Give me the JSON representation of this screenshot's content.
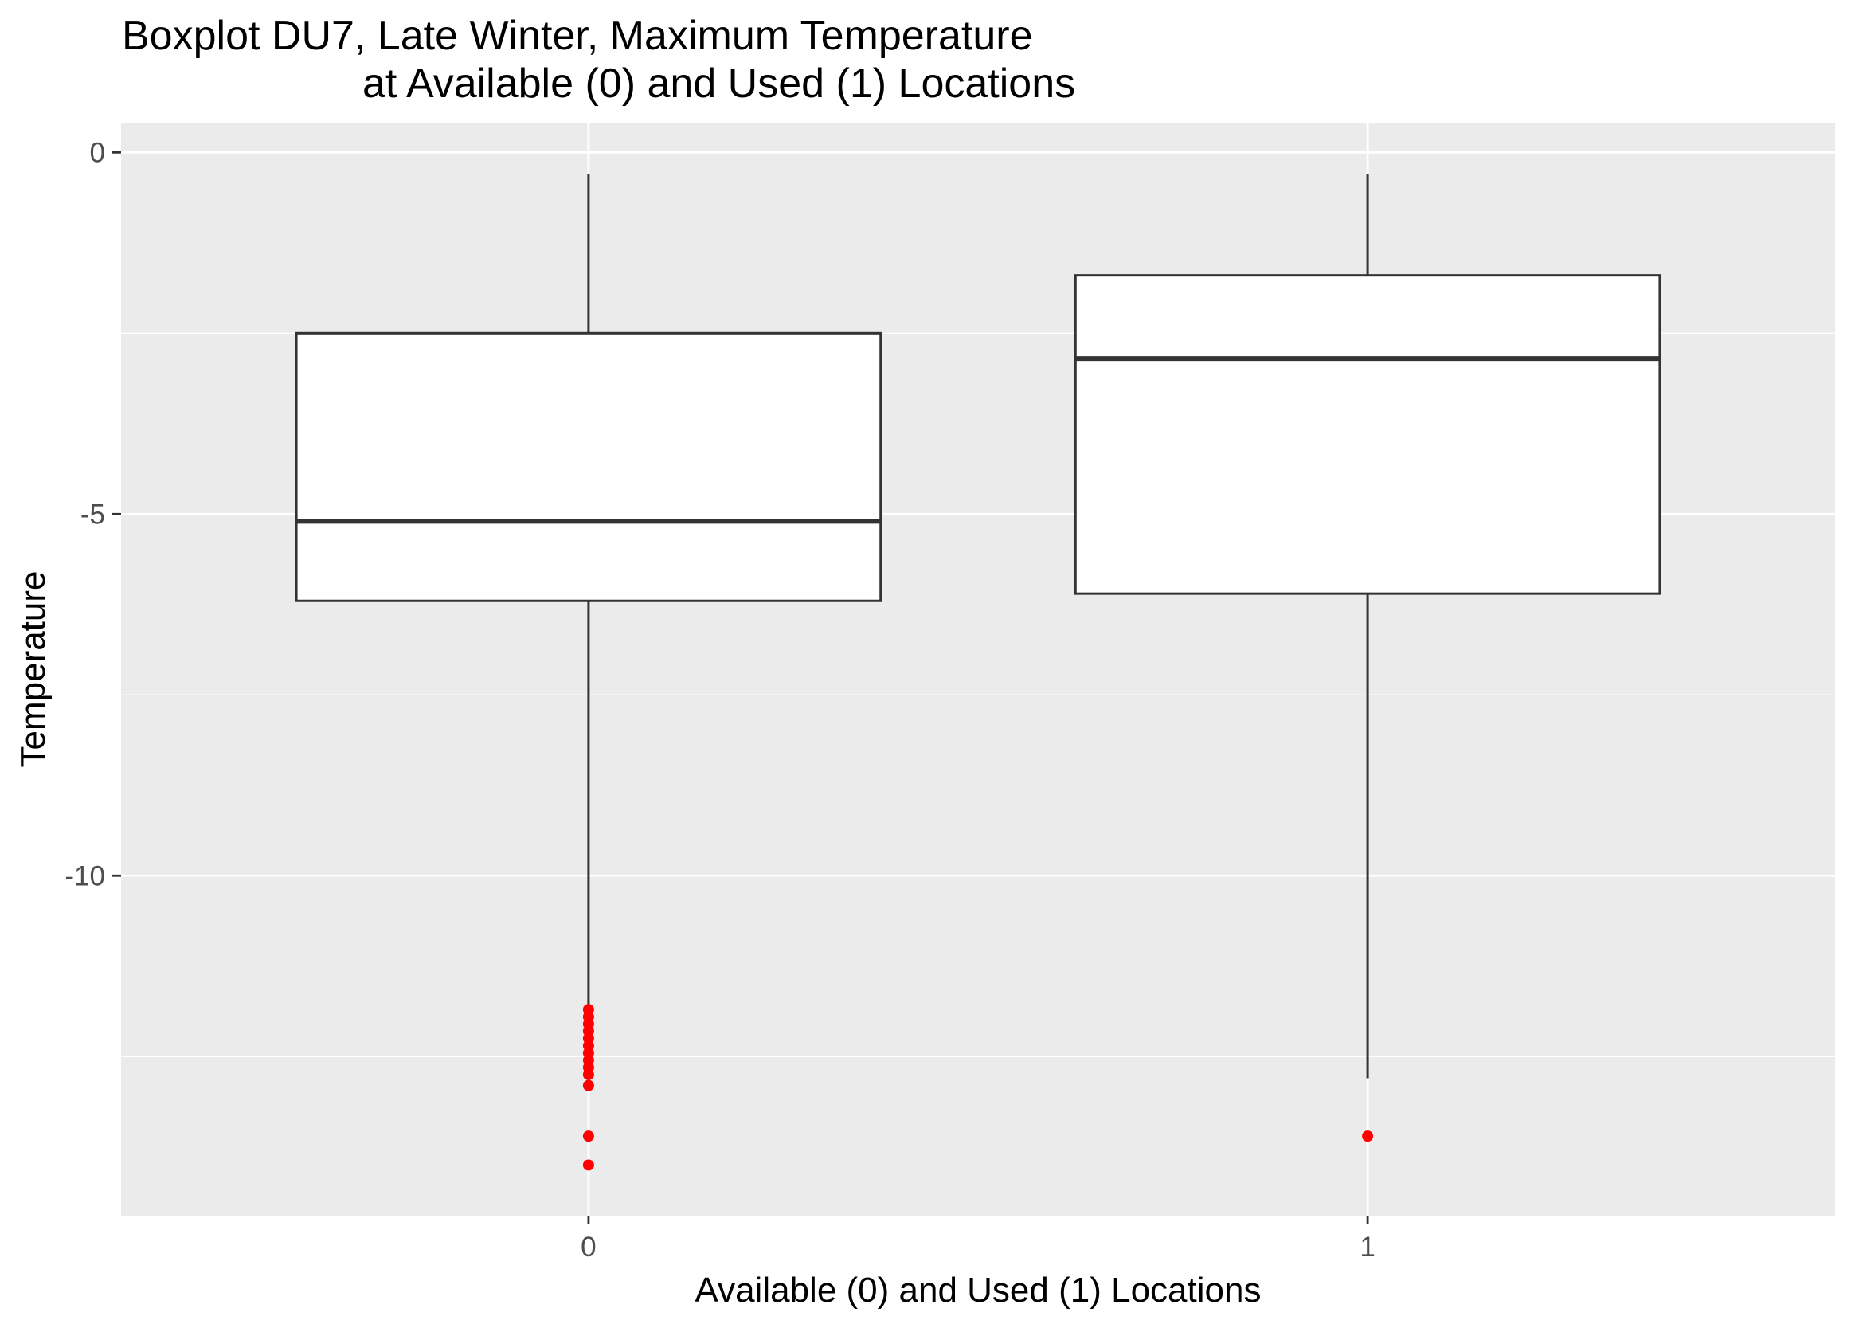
{
  "chart_data": {
    "type": "boxplot",
    "title_line1": "Boxplot DU7, Late Winter, Maximum Temperature",
    "title_line2": "at Available (0) and Used (1) Locations",
    "xlabel": "Available (0) and Used (1) Locations",
    "ylabel": "Temperature",
    "categories": [
      "0",
      "1"
    ],
    "ylim": [
      -14.7,
      0.4
    ],
    "yticks": [
      0,
      -5,
      -10
    ],
    "ytick_labels": [
      "0",
      "-5",
      "-10"
    ],
    "grid": true,
    "boxes": [
      {
        "category": "0",
        "whisker_high": -0.3,
        "q3": -2.5,
        "median": -5.1,
        "q1": -6.2,
        "whisker_low": -11.8,
        "outliers": [
          -11.85,
          -11.95,
          -12.05,
          -12.15,
          -12.25,
          -12.35,
          -12.45,
          -12.55,
          -12.65,
          -12.75,
          -12.9,
          -13.6,
          -14.0
        ]
      },
      {
        "category": "1",
        "whisker_high": -0.3,
        "q3": -1.7,
        "median": -2.85,
        "q1": -6.1,
        "whisker_low": -12.8,
        "outliers": [
          -13.6
        ]
      }
    ],
    "colors": {
      "panel": "#ebebeb",
      "grid": "#ffffff",
      "box_fill": "#ffffff",
      "box_line": "#333333",
      "outlier": "#ff0000"
    }
  }
}
